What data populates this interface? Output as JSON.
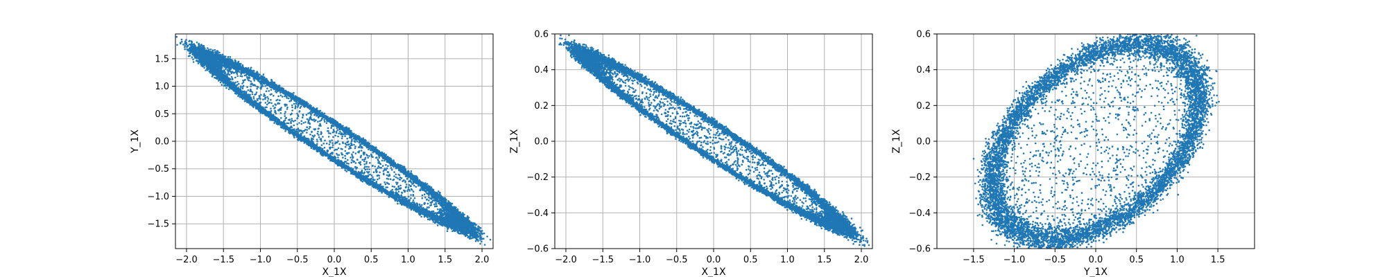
{
  "chart_data": [
    {
      "type": "scatter",
      "xlabel": "X_1X",
      "ylabel": "Y_1X",
      "xlim": [
        -2.15,
        2.15
      ],
      "ylim": [
        -1.95,
        1.95
      ],
      "xticks": [
        -2.0,
        -1.5,
        -1.0,
        -0.5,
        0.0,
        0.5,
        1.0,
        1.5,
        2.0
      ],
      "xtick_labels": [
        "−2.0",
        "−1.5",
        "−1.0",
        "−0.5",
        "0.0",
        "0.5",
        "1.0",
        "1.5",
        "2.0"
      ],
      "yticks": [
        -1.5,
        -1.0,
        -0.5,
        0.0,
        0.5,
        1.0,
        1.5
      ],
      "ytick_labels": [
        "−1.5",
        "−1.0",
        "−0.5",
        "0.0",
        "0.5",
        "1.0",
        "1.5"
      ],
      "grid": true,
      "color": "#1f77b4",
      "distribution": {
        "shape": "tilted-elliptical-ring",
        "center": [
          0,
          0
        ],
        "major_axis_end": [
          -1.75,
          1.55
        ],
        "minor_axis_end": [
          0.17,
          0.19
        ],
        "ring_thickness": 0.17,
        "inner_fill_fraction": 0.1
      }
    },
    {
      "type": "scatter",
      "xlabel": "X_1X",
      "ylabel": "Z_1X",
      "xlim": [
        -2.15,
        2.15
      ],
      "ylim": [
        -0.6,
        0.6
      ],
      "xticks": [
        -2.0,
        -1.5,
        -1.0,
        -0.5,
        0.0,
        0.5,
        1.0,
        1.5,
        2.0
      ],
      "xtick_labels": [
        "−2.0",
        "−1.5",
        "−1.0",
        "−0.5",
        "0.0",
        "0.5",
        "1.0",
        "1.5",
        "2.0"
      ],
      "yticks": [
        -0.6,
        -0.4,
        -0.2,
        0.0,
        0.2,
        0.4,
        0.6
      ],
      "ytick_labels": [
        "−0.6",
        "−0.4",
        "−0.2",
        "0.0",
        "0.2",
        "0.4",
        "0.6"
      ],
      "grid": true,
      "color": "#1f77b4",
      "distribution": {
        "shape": "tilted-elliptical-ring",
        "center": [
          0,
          0
        ],
        "major_axis_end": [
          -1.75,
          0.48
        ],
        "minor_axis_end": [
          0.13,
          0.07
        ],
        "ring_thickness": 0.17,
        "inner_fill_fraction": 0.1
      }
    },
    {
      "type": "scatter",
      "xlabel": "Y_1X",
      "ylabel": "Z_1X",
      "xlim": [
        -1.95,
        1.95
      ],
      "ylim": [
        -0.6,
        0.6
      ],
      "xticks": [
        -1.5,
        -1.0,
        -0.5,
        0.0,
        0.5,
        1.0,
        1.5
      ],
      "xtick_labels": [
        "−1.5",
        "−1.0",
        "−0.5",
        "0.0",
        "0.5",
        "1.0",
        "1.5"
      ],
      "yticks": [
        -0.6,
        -0.4,
        -0.2,
        0.0,
        0.2,
        0.4,
        0.6
      ],
      "ytick_labels": [
        "−0.6",
        "−0.4",
        "−0.2",
        "0.0",
        "0.2",
        "0.4",
        "0.6"
      ],
      "grid": true,
      "color": "#1f77b4",
      "distribution": {
        "shape": "tilted-elliptical-ring",
        "center": [
          0,
          0
        ],
        "major_axis_end": [
          1.15,
          0.42
        ],
        "minor_axis_end": [
          -0.55,
          0.35
        ],
        "ring_thickness": 0.14,
        "inner_fill_fraction": 0.12
      }
    }
  ]
}
